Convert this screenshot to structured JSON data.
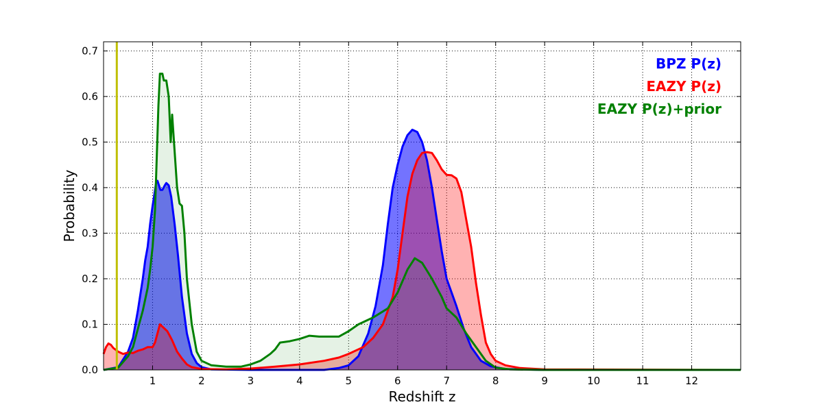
{
  "chart_data": {
    "type": "area",
    "title": "",
    "xlabel": "Redshift z",
    "ylabel": "Probability",
    "xlim": [
      0,
      13
    ],
    "ylim": [
      0,
      0.72
    ],
    "x_ticks": [
      "1",
      "2",
      "3",
      "4",
      "5",
      "6",
      "7",
      "8",
      "9",
      "10",
      "11",
      "12"
    ],
    "y_ticks": [
      "0.0",
      "0.1",
      "0.2",
      "0.3",
      "0.4",
      "0.5",
      "0.6",
      "0.7"
    ],
    "grid": true,
    "legend_placement": "top-right",
    "vertical_line": {
      "x": 0.27,
      "color": "#bfbf00"
    },
    "series": [
      {
        "name": "BPZ P(z)",
        "color": "#0000ff",
        "fill": "#0000ff",
        "fill_opacity": 0.55,
        "points": [
          [
            0,
            0
          ],
          [
            0.3,
            0.006
          ],
          [
            0.5,
            0.04
          ],
          [
            0.6,
            0.07
          ],
          [
            0.7,
            0.13
          ],
          [
            0.8,
            0.2
          ],
          [
            0.85,
            0.24
          ],
          [
            0.9,
            0.27
          ],
          [
            0.95,
            0.32
          ],
          [
            1.0,
            0.36
          ],
          [
            1.03,
            0.38
          ],
          [
            1.07,
            0.41
          ],
          [
            1.1,
            0.415
          ],
          [
            1.13,
            0.405
          ],
          [
            1.16,
            0.395
          ],
          [
            1.2,
            0.395
          ],
          [
            1.25,
            0.405
          ],
          [
            1.28,
            0.41
          ],
          [
            1.33,
            0.405
          ],
          [
            1.38,
            0.38
          ],
          [
            1.45,
            0.32
          ],
          [
            1.52,
            0.25
          ],
          [
            1.6,
            0.16
          ],
          [
            1.7,
            0.08
          ],
          [
            1.8,
            0.035
          ],
          [
            1.9,
            0.015
          ],
          [
            2.0,
            0.006
          ],
          [
            2.2,
            0.001
          ],
          [
            3.0,
            0
          ],
          [
            4.5,
            0
          ],
          [
            4.8,
            0.004
          ],
          [
            5.0,
            0.01
          ],
          [
            5.2,
            0.03
          ],
          [
            5.4,
            0.08
          ],
          [
            5.55,
            0.14
          ],
          [
            5.7,
            0.23
          ],
          [
            5.8,
            0.32
          ],
          [
            5.9,
            0.4
          ],
          [
            6.0,
            0.45
          ],
          [
            6.1,
            0.49
          ],
          [
            6.2,
            0.515
          ],
          [
            6.3,
            0.527
          ],
          [
            6.4,
            0.522
          ],
          [
            6.5,
            0.5
          ],
          [
            6.6,
            0.46
          ],
          [
            6.7,
            0.4
          ],
          [
            6.8,
            0.33
          ],
          [
            6.9,
            0.26
          ],
          [
            7.0,
            0.2
          ],
          [
            7.1,
            0.17
          ],
          [
            7.2,
            0.14
          ],
          [
            7.35,
            0.09
          ],
          [
            7.5,
            0.05
          ],
          [
            7.7,
            0.02
          ],
          [
            7.9,
            0.008
          ],
          [
            8.2,
            0.002
          ],
          [
            9.0,
            0
          ],
          [
            13,
            0
          ]
        ]
      },
      {
        "name": "EAZY P(z)",
        "color": "#ff0000",
        "fill": "#ff0000",
        "fill_opacity": 0.3,
        "points": [
          [
            0,
            0.035
          ],
          [
            0.05,
            0.05
          ],
          [
            0.1,
            0.058
          ],
          [
            0.15,
            0.055
          ],
          [
            0.2,
            0.048
          ],
          [
            0.3,
            0.04
          ],
          [
            0.4,
            0.035
          ],
          [
            0.5,
            0.038
          ],
          [
            0.6,
            0.037
          ],
          [
            0.7,
            0.042
          ],
          [
            0.8,
            0.045
          ],
          [
            0.9,
            0.05
          ],
          [
            1.0,
            0.05
          ],
          [
            1.05,
            0.06
          ],
          [
            1.1,
            0.08
          ],
          [
            1.15,
            0.1
          ],
          [
            1.2,
            0.095
          ],
          [
            1.3,
            0.085
          ],
          [
            1.35,
            0.075
          ],
          [
            1.4,
            0.065
          ],
          [
            1.5,
            0.04
          ],
          [
            1.6,
            0.025
          ],
          [
            1.7,
            0.012
          ],
          [
            1.8,
            0.006
          ],
          [
            2.0,
            0.002
          ],
          [
            2.5,
            0.001
          ],
          [
            3.0,
            0.003
          ],
          [
            3.5,
            0.007
          ],
          [
            4.0,
            0.012
          ],
          [
            4.5,
            0.02
          ],
          [
            4.8,
            0.027
          ],
          [
            5.0,
            0.035
          ],
          [
            5.3,
            0.05
          ],
          [
            5.5,
            0.07
          ],
          [
            5.7,
            0.1
          ],
          [
            5.9,
            0.16
          ],
          [
            6.0,
            0.22
          ],
          [
            6.1,
            0.3
          ],
          [
            6.2,
            0.38
          ],
          [
            6.3,
            0.43
          ],
          [
            6.4,
            0.46
          ],
          [
            6.5,
            0.476
          ],
          [
            6.6,
            0.478
          ],
          [
            6.7,
            0.476
          ],
          [
            6.8,
            0.46
          ],
          [
            6.9,
            0.44
          ],
          [
            7.0,
            0.428
          ],
          [
            7.1,
            0.427
          ],
          [
            7.2,
            0.42
          ],
          [
            7.3,
            0.39
          ],
          [
            7.4,
            0.33
          ],
          [
            7.5,
            0.27
          ],
          [
            7.6,
            0.19
          ],
          [
            7.7,
            0.12
          ],
          [
            7.8,
            0.06
          ],
          [
            7.9,
            0.035
          ],
          [
            8.0,
            0.02
          ],
          [
            8.2,
            0.01
          ],
          [
            8.5,
            0.004
          ],
          [
            9.0,
            0.001
          ],
          [
            13,
            0
          ]
        ]
      },
      {
        "name": "EAZY P(z)+prior",
        "color": "#008000",
        "fill": "#008000",
        "fill_opacity": 0.1,
        "points": [
          [
            0,
            0
          ],
          [
            0.3,
            0.005
          ],
          [
            0.5,
            0.03
          ],
          [
            0.6,
            0.05
          ],
          [
            0.7,
            0.09
          ],
          [
            0.8,
            0.13
          ],
          [
            0.9,
            0.18
          ],
          [
            0.95,
            0.22
          ],
          [
            1.0,
            0.27
          ],
          [
            1.05,
            0.35
          ],
          [
            1.08,
            0.45
          ],
          [
            1.12,
            0.58
          ],
          [
            1.15,
            0.65
          ],
          [
            1.2,
            0.65
          ],
          [
            1.23,
            0.635
          ],
          [
            1.28,
            0.635
          ],
          [
            1.33,
            0.6
          ],
          [
            1.37,
            0.5
          ],
          [
            1.4,
            0.56
          ],
          [
            1.45,
            0.48
          ],
          [
            1.5,
            0.4
          ],
          [
            1.55,
            0.365
          ],
          [
            1.6,
            0.36
          ],
          [
            1.65,
            0.3
          ],
          [
            1.7,
            0.2
          ],
          [
            1.8,
            0.1
          ],
          [
            1.9,
            0.04
          ],
          [
            2.0,
            0.02
          ],
          [
            2.2,
            0.01
          ],
          [
            2.5,
            0.007
          ],
          [
            2.8,
            0.007
          ],
          [
            3.0,
            0.012
          ],
          [
            3.2,
            0.02
          ],
          [
            3.4,
            0.035
          ],
          [
            3.5,
            0.045
          ],
          [
            3.6,
            0.06
          ],
          [
            3.8,
            0.063
          ],
          [
            4.0,
            0.068
          ],
          [
            4.2,
            0.075
          ],
          [
            4.4,
            0.073
          ],
          [
            4.6,
            0.073
          ],
          [
            4.8,
            0.073
          ],
          [
            5.0,
            0.085
          ],
          [
            5.2,
            0.1
          ],
          [
            5.5,
            0.115
          ],
          [
            5.8,
            0.135
          ],
          [
            6.0,
            0.17
          ],
          [
            6.2,
            0.22
          ],
          [
            6.35,
            0.245
          ],
          [
            6.5,
            0.235
          ],
          [
            6.7,
            0.2
          ],
          [
            6.9,
            0.16
          ],
          [
            7.0,
            0.135
          ],
          [
            7.2,
            0.115
          ],
          [
            7.4,
            0.08
          ],
          [
            7.6,
            0.05
          ],
          [
            7.8,
            0.02
          ],
          [
            8.0,
            0.005
          ],
          [
            8.3,
            0.001
          ],
          [
            9.0,
            0
          ],
          [
            13,
            0
          ]
        ]
      }
    ]
  }
}
